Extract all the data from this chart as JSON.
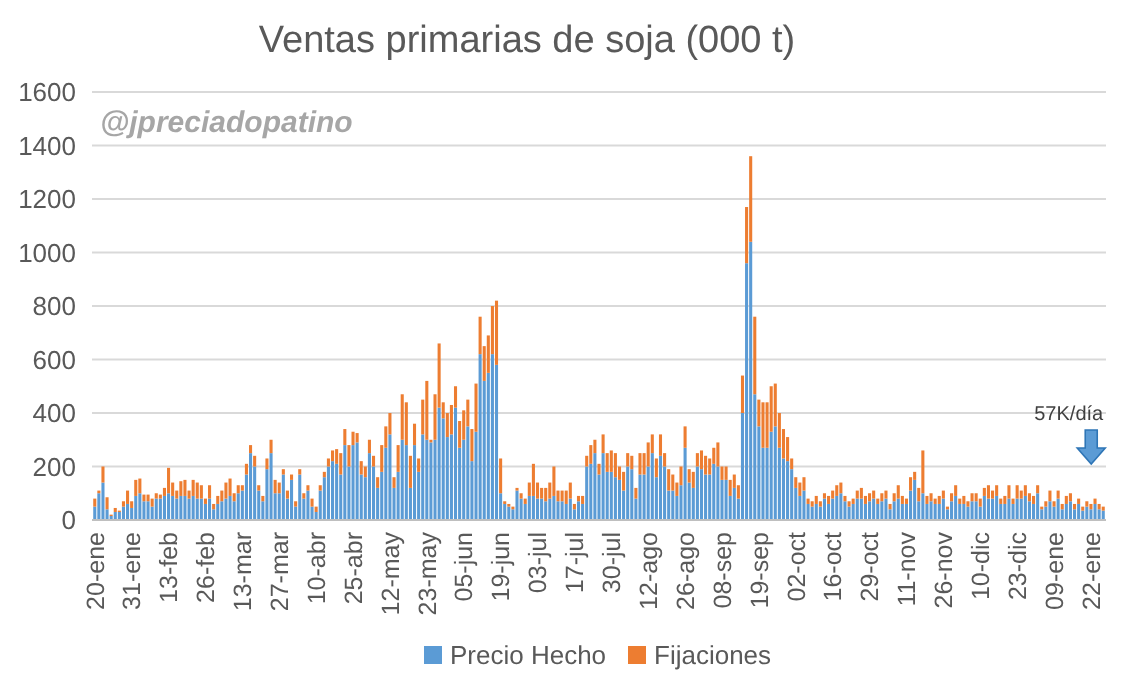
{
  "chart_data": {
    "type": "bar",
    "title": "Ventas primarias de soja (000 t)",
    "stacked": true,
    "grid": "y",
    "legend": "bottom",
    "ylim": [
      0,
      1600
    ],
    "yticks": [
      0,
      200,
      400,
      600,
      800,
      1000,
      1200,
      1400,
      1600
    ],
    "annotations": [
      "@jpreciadopatino",
      "57K/día"
    ],
    "categories": [
      "20-ene",
      null,
      null,
      null,
      null,
      null,
      null,
      null,
      null,
      "31-ene",
      null,
      null,
      null,
      null,
      null,
      null,
      null,
      null,
      "13-feb",
      null,
      null,
      null,
      null,
      null,
      null,
      null,
      null,
      "26-feb",
      null,
      null,
      null,
      null,
      null,
      null,
      null,
      null,
      "13-mar",
      null,
      null,
      null,
      null,
      null,
      null,
      null,
      null,
      "27-mar",
      null,
      null,
      null,
      null,
      null,
      null,
      null,
      null,
      "10-abr",
      null,
      null,
      null,
      null,
      null,
      null,
      null,
      null,
      "25-abr",
      null,
      null,
      null,
      null,
      null,
      null,
      null,
      null,
      "12-may",
      null,
      null,
      null,
      null,
      null,
      null,
      null,
      null,
      "23-may",
      null,
      null,
      null,
      null,
      null,
      null,
      null,
      null,
      "05-jun",
      null,
      null,
      null,
      null,
      null,
      null,
      null,
      null,
      "19-jun",
      null,
      null,
      null,
      null,
      null,
      null,
      null,
      null,
      "03-jul",
      null,
      null,
      null,
      null,
      null,
      null,
      null,
      null,
      "17-jul",
      null,
      null,
      null,
      null,
      null,
      null,
      null,
      null,
      "30-jul",
      null,
      null,
      null,
      null,
      null,
      null,
      null,
      null,
      "12-ago",
      null,
      null,
      null,
      null,
      null,
      null,
      null,
      null,
      "26-ago",
      null,
      null,
      null,
      null,
      null,
      null,
      null,
      null,
      "08-sep",
      null,
      null,
      null,
      null,
      null,
      null,
      null,
      null,
      "19-sep",
      null,
      null,
      null,
      null,
      null,
      null,
      null,
      null,
      "02-oct",
      null,
      null,
      null,
      null,
      null,
      null,
      null,
      null,
      "16-oct",
      null,
      null,
      null,
      null,
      null,
      null,
      null,
      null,
      "29-oct",
      null,
      null,
      null,
      null,
      null,
      null,
      null,
      null,
      "11-nov",
      null,
      null,
      null,
      null,
      null,
      null,
      null,
      null,
      "26-nov",
      null,
      null,
      null,
      null,
      null,
      null,
      null,
      null,
      "10-dic",
      null,
      null,
      null,
      null,
      null,
      null,
      null,
      null,
      "23-dic",
      null,
      null,
      null,
      null,
      null,
      null,
      null,
      null,
      "09-ene",
      null,
      null,
      null,
      null,
      null,
      null,
      null,
      null,
      "22-ene",
      null,
      null,
      null
    ],
    "series": [
      {
        "name": "Precio Hecho",
        "color": "#5b9bd5",
        "values": [
          50,
          100,
          140,
          40,
          15,
          30,
          30,
          50,
          60,
          45,
          90,
          100,
          70,
          70,
          50,
          80,
          80,
          90,
          100,
          90,
          80,
          90,
          90,
          80,
          90,
          80,
          80,
          60,
          80,
          40,
          60,
          70,
          80,
          90,
          70,
          100,
          110,
          170,
          250,
          200,
          110,
          70,
          190,
          250,
          100,
          100,
          170,
          80,
          150,
          50,
          170,
          80,
          110,
          50,
          30,
          110,
          160,
          200,
          220,
          210,
          170,
          280,
          200,
          280,
          290,
          170,
          160,
          250,
          200,
          120,
          180,
          270,
          320,
          120,
          180,
          300,
          280,
          120,
          280,
          180,
          320,
          300,
          290,
          300,
          420,
          380,
          310,
          320,
          420,
          270,
          300,
          350,
          220,
          330,
          620,
          520,
          550,
          620,
          580,
          100,
          60,
          50,
          40,
          110,
          80,
          60,
          90,
          90,
          80,
          80,
          70,
          80,
          90,
          70,
          70,
          60,
          80,
          40,
          70,
          60,
          200,
          210,
          250,
          170,
          250,
          180,
          180,
          160,
          150,
          110,
          200,
          190,
          80,
          170,
          170,
          200,
          250,
          160,
          240,
          200,
          110,
          110,
          90,
          130,
          270,
          140,
          120,
          200,
          190,
          170,
          170,
          210,
          200,
          150,
          150,
          90,
          120,
          80,
          400,
          960,
          1040,
          470,
          350,
          270,
          270,
          330,
          350,
          270,
          230,
          220,
          190,
          120,
          90,
          110,
          60,
          50,
          60,
          50,
          80,
          60,
          80,
          90,
          100,
          70,
          50,
          60,
          80,
          80,
          60,
          70,
          80,
          60,
          70,
          80,
          40,
          70,
          80,
          60,
          60,
          110,
          150,
          70,
          100,
          60,
          70,
          60,
          60,
          80,
          40,
          70,
          90,
          60,
          60,
          50,
          70,
          70,
          50,
          90,
          80,
          80,
          90,
          60,
          60,
          80,
          60,
          80,
          80,
          90,
          70,
          60,
          100,
          40,
          50,
          70,
          50,
          80,
          40,
          60,
          70,
          40,
          60,
          35,
          50,
          40,
          60,
          40,
          35
        ]
      },
      {
        "name": "Fijaciones",
        "color": "#ed7d31",
        "values": [
          30,
          10,
          60,
          45,
          5,
          15,
          5,
          20,
          50,
          25,
          60,
          55,
          25,
          25,
          30,
          20,
          15,
          30,
          95,
          50,
          30,
          55,
          60,
          30,
          60,
          60,
          50,
          20,
          50,
          20,
          30,
          40,
          60,
          65,
          30,
          30,
          20,
          40,
          30,
          40,
          20,
          20,
          40,
          50,
          50,
          40,
          20,
          30,
          20,
          20,
          20,
          20,
          20,
          30,
          20,
          20,
          20,
          30,
          40,
          55,
          80,
          60,
          80,
          50,
          35,
          50,
          40,
          50,
          40,
          40,
          100,
          80,
          80,
          40,
          100,
          170,
          160,
          120,
          80,
          50,
          130,
          220,
          10,
          170,
          240,
          60,
          90,
          110,
          80,
          100,
          110,
          100,
          120,
          180,
          140,
          130,
          140,
          180,
          240,
          130,
          10,
          10,
          10,
          10,
          20,
          20,
          50,
          120,
          60,
          40,
          50,
          60,
          110,
          40,
          40,
          50,
          60,
          20,
          20,
          30,
          40,
          70,
          50,
          40,
          70,
          70,
          80,
          90,
          50,
          70,
          50,
          50,
          40,
          80,
          80,
          90,
          70,
          70,
          80,
          50,
          80,
          60,
          50,
          70,
          80,
          50,
          60,
          50,
          70,
          70,
          60,
          60,
          90,
          50,
          50,
          60,
          50,
          50,
          140,
          210,
          320,
          290,
          100,
          170,
          170,
          170,
          160,
          130,
          110,
          90,
          40,
          40,
          50,
          50,
          20,
          20,
          30,
          20,
          20,
          30,
          30,
          40,
          40,
          20,
          20,
          20,
          30,
          40,
          30,
          30,
          30,
          20,
          30,
          30,
          20,
          30,
          50,
          30,
          20,
          50,
          30,
          50,
          160,
          30,
          30,
          20,
          30,
          30,
          10,
          30,
          40,
          20,
          30,
          20,
          30,
          30,
          30,
          30,
          50,
          30,
          40,
          20,
          30,
          50,
          20,
          50,
          30,
          40,
          30,
          30,
          30,
          10,
          20,
          40,
          20,
          30,
          20,
          30,
          30,
          20,
          20,
          15,
          20,
          20,
          20,
          20,
          15
        ]
      }
    ]
  }
}
